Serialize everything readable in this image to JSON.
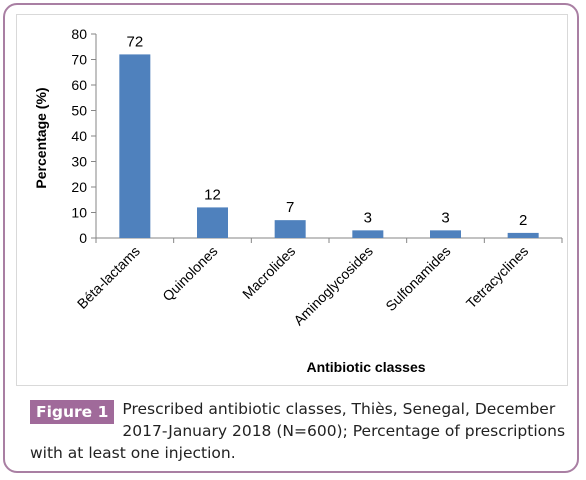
{
  "chart_data": {
    "type": "bar",
    "categories": [
      "Béta-lactams",
      "Quinolones",
      "Macrolides",
      "Aminoglycosides",
      "Sulfonamides",
      "Tetracyclines"
    ],
    "values": [
      72,
      12,
      7,
      3,
      3,
      2
    ],
    "data_labels": [
      "72",
      "12",
      "7",
      "3",
      "3",
      "2"
    ],
    "xlabel": "Antibiotic classes",
    "ylabel": "Percentage (%)",
    "ylim": [
      0,
      80
    ],
    "yticks": [
      0,
      10,
      20,
      30,
      40,
      50,
      60,
      70,
      80
    ],
    "grid": false,
    "bar_color": "#4f81bd"
  },
  "caption": {
    "label": "Figure 1",
    "text": "Prescribed antibiotic classes, Thiès, Senegal, December 2017-January 2018 (N=600); Percentage of prescriptions with at least one injection."
  },
  "colors": {
    "frame_border": "#a97fa3",
    "label_bg": "#a06a9a"
  }
}
